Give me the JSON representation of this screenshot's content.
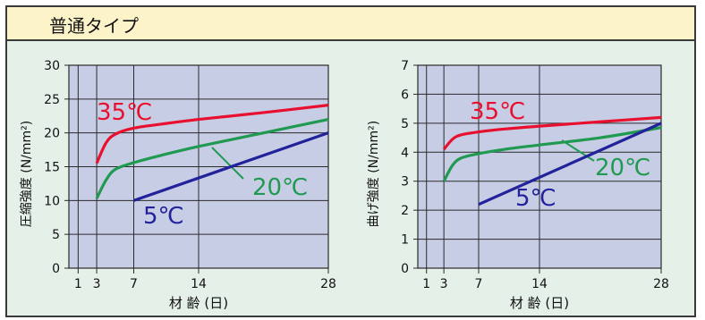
{
  "header": {
    "title": "普通タイプ"
  },
  "chart_data": [
    {
      "type": "line",
      "ylabel": "圧縮強度 (N/mm²)",
      "xlabel": "材 齢 (日)",
      "xticks": [
        1,
        3,
        7,
        14,
        28
      ],
      "yticks": [
        0,
        5,
        10,
        15,
        20,
        25,
        30
      ],
      "xlim": [
        0,
        28
      ],
      "ylim": [
        0,
        30
      ],
      "grid": true,
      "series": [
        {
          "name": "35℃",
          "color": "#e8102e",
          "points": [
            [
              3,
              15.5
            ],
            [
              4,
              18.5
            ],
            [
              5,
              19.8
            ],
            [
              7,
              20.7
            ],
            [
              10,
              21.3
            ],
            [
              14,
              22.0
            ],
            [
              21,
              23.0
            ],
            [
              28,
              24.1
            ]
          ]
        },
        {
          "name": "20℃",
          "color": "#1f9a50",
          "points": [
            [
              3,
              10.3
            ],
            [
              4,
              13.0
            ],
            [
              5,
              14.6
            ],
            [
              7,
              15.6
            ],
            [
              10,
              16.7
            ],
            [
              14,
              18.0
            ],
            [
              21,
              20.0
            ],
            [
              28,
              22.0
            ]
          ]
        },
        {
          "name": "5℃",
          "color": "#22229a",
          "points": [
            [
              7,
              10.0
            ],
            [
              28,
              20.0
            ]
          ]
        }
      ]
    },
    {
      "type": "line",
      "ylabel": "曲げ強度 (N/mm²)",
      "xlabel": "材 齢 (日)",
      "xticks": [
        1,
        3,
        7,
        14,
        28
      ],
      "yticks": [
        0,
        1,
        2,
        3,
        4,
        5,
        6,
        7
      ],
      "xlim": [
        0,
        28
      ],
      "ylim": [
        0,
        7
      ],
      "grid": true,
      "series": [
        {
          "name": "35℃",
          "color": "#e8102e",
          "points": [
            [
              3,
              4.1
            ],
            [
              4,
              4.45
            ],
            [
              5,
              4.6
            ],
            [
              7,
              4.7
            ],
            [
              10,
              4.8
            ],
            [
              14,
              4.9
            ],
            [
              21,
              5.05
            ],
            [
              28,
              5.2
            ]
          ]
        },
        {
          "name": "20℃",
          "color": "#1f9a50",
          "points": [
            [
              3,
              3.0
            ],
            [
              4,
              3.55
            ],
            [
              5,
              3.8
            ],
            [
              7,
              3.95
            ],
            [
              10,
              4.1
            ],
            [
              14,
              4.25
            ],
            [
              21,
              4.5
            ],
            [
              28,
              4.85
            ]
          ]
        },
        {
          "name": "5℃",
          "color": "#22229a",
          "points": [
            [
              7,
              2.2
            ],
            [
              28,
              5.0
            ]
          ]
        }
      ]
    }
  ]
}
